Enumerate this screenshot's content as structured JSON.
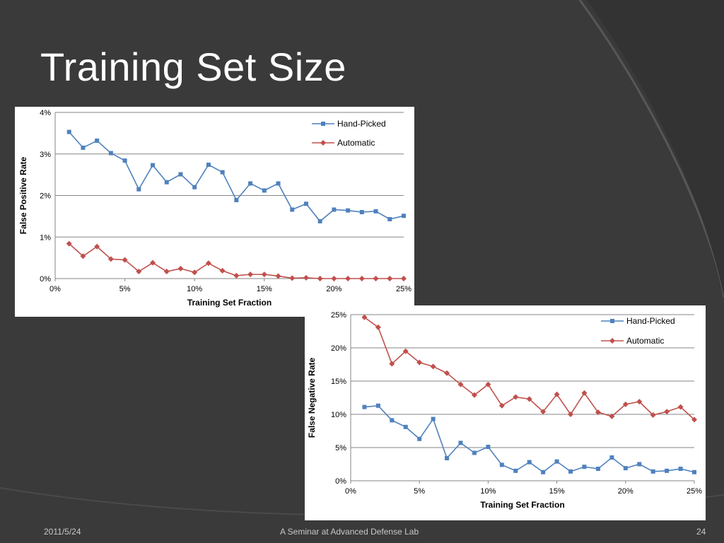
{
  "slide": {
    "title": "Training Set Size",
    "footer_date": "2011/5/24",
    "footer_center": "A Seminar at Advanced Defense Lab",
    "page_number": "24",
    "colors": {
      "background": "#3a3a3a",
      "accent_line": "#555555",
      "title": "#ffffff"
    }
  },
  "chart_data": [
    {
      "type": "line",
      "xlabel": "Training Set Fraction",
      "ylabel": "False Positive Rate",
      "x_ticks": [
        "0%",
        "5%",
        "10%",
        "15%",
        "20%",
        "25%"
      ],
      "y_ticks": [
        "0%",
        "1%",
        "2%",
        "3%",
        "4%"
      ],
      "xlim": [
        0,
        25
      ],
      "ylim": [
        0,
        4
      ],
      "grid": true,
      "legend_position": "top-right",
      "x": [
        1,
        2,
        3,
        4,
        5,
        6,
        7,
        8,
        9,
        10,
        11,
        12,
        13,
        14,
        15,
        16,
        17,
        18,
        19,
        20,
        21,
        22,
        23,
        24,
        25
      ],
      "series": [
        {
          "name": "Hand-Picked",
          "color": "#4f81bd",
          "marker": "square",
          "values": [
            3.53,
            3.15,
            3.32,
            3.02,
            2.84,
            2.15,
            2.73,
            2.32,
            2.51,
            2.2,
            2.74,
            2.56,
            1.89,
            2.29,
            2.12,
            2.29,
            1.66,
            1.8,
            1.38,
            1.66,
            1.64,
            1.6,
            1.62,
            1.43,
            1.51
          ]
        },
        {
          "name": "Automatic",
          "color": "#c0504d",
          "marker": "diamond",
          "values": [
            0.84,
            0.54,
            0.77,
            0.47,
            0.45,
            0.17,
            0.38,
            0.17,
            0.24,
            0.15,
            0.37,
            0.19,
            0.07,
            0.1,
            0.1,
            0.06,
            0.01,
            0.02,
            0.0,
            0.0,
            0.0,
            0.0,
            0.0,
            0.0,
            0.0
          ]
        }
      ]
    },
    {
      "type": "line",
      "xlabel": "Training Set Fraction",
      "ylabel": "False Negative Rate",
      "x_ticks": [
        "0%",
        "5%",
        "10%",
        "15%",
        "20%",
        "25%"
      ],
      "y_ticks": [
        "0%",
        "5%",
        "10%",
        "15%",
        "20%",
        "25%"
      ],
      "xlim": [
        0,
        25
      ],
      "ylim": [
        0,
        25
      ],
      "grid": true,
      "legend_position": "top-right",
      "x": [
        1,
        2,
        3,
        4,
        5,
        6,
        7,
        8,
        9,
        10,
        11,
        12,
        13,
        14,
        15,
        16,
        17,
        18,
        19,
        20,
        21,
        22,
        23,
        24,
        25
      ],
      "series": [
        {
          "name": "Hand-Picked",
          "color": "#4f81bd",
          "marker": "square",
          "values": [
            11.1,
            11.3,
            9.1,
            8.1,
            6.3,
            9.3,
            3.4,
            5.7,
            4.2,
            5.1,
            2.4,
            1.5,
            2.8,
            1.3,
            2.9,
            1.4,
            2.1,
            1.8,
            3.5,
            1.9,
            2.5,
            1.4,
            1.5,
            1.8,
            1.3
          ]
        },
        {
          "name": "Automatic",
          "color": "#c0504d",
          "marker": "diamond",
          "values": [
            24.6,
            23.1,
            17.6,
            19.5,
            17.8,
            17.2,
            16.2,
            14.5,
            12.9,
            14.5,
            11.3,
            12.6,
            12.3,
            10.4,
            13.0,
            10.0,
            13.2,
            10.3,
            9.7,
            11.5,
            11.9,
            9.9,
            10.4,
            11.1,
            9.2
          ]
        }
      ]
    }
  ]
}
